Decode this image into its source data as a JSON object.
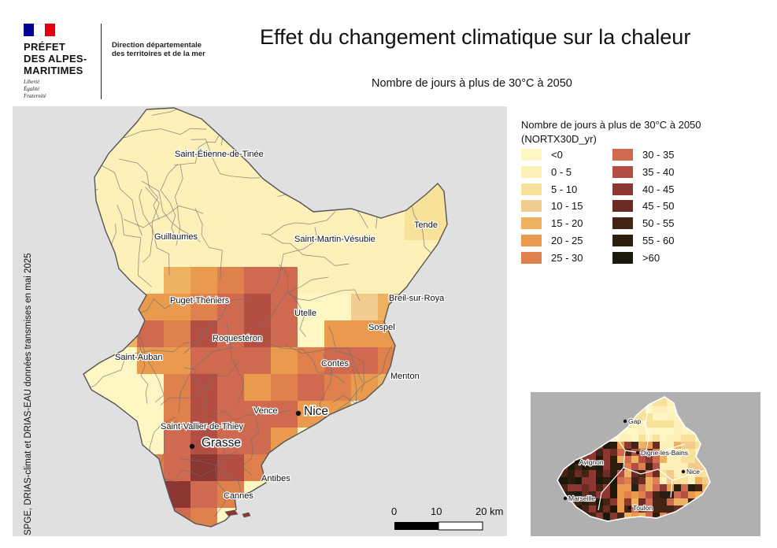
{
  "header": {
    "flag_colors": [
      "#000091",
      "#ffffff",
      "#e1000f"
    ],
    "prefet_lines": [
      "PRÉFET",
      "DES ALPES-",
      "MARITIMES"
    ],
    "devise_lines": [
      "Liberté",
      "Égalité",
      "Fraternité"
    ],
    "ddtm_lines": [
      "Direction départementale",
      "des territoires et de la mer"
    ],
    "title": "Effet du changement climatique sur la chaleur",
    "subtitle": "Nombre de jours à plus de 30°C à 2050"
  },
  "credit": "SPGE, DRIAS-climat et DRIAS-EAU données transmises en mai 2025",
  "legend": {
    "title_lines": [
      "Nombre de jours à plus de 30°C à 2050",
      "(NORTX30D_yr)"
    ],
    "classes": [
      {
        "label": "<0",
        "color": "#fef7c4"
      },
      {
        "label": "0 - 5",
        "color": "#fdf0b8"
      },
      {
        "label": "5 - 10",
        "color": "#f8e29a"
      },
      {
        "label": "10 - 15",
        "color": "#f2cc8f"
      },
      {
        "label": "15 - 20",
        "color": "#eeb15f"
      },
      {
        "label": "20 - 25",
        "color": "#e99a4c"
      },
      {
        "label": "25 - 30",
        "color": "#e0804c"
      },
      {
        "label": "30 - 35",
        "color": "#cf6a50"
      },
      {
        "label": "35 - 40",
        "color": "#b34e42"
      },
      {
        "label": "40 - 45",
        "color": "#8d3733"
      },
      {
        "label": "45 - 50",
        "color": "#6a2c24"
      },
      {
        "label": "50 - 55",
        "color": "#442414"
      },
      {
        "label": "55 - 60",
        "color": "#2b1e0e"
      },
      {
        "label": ">60",
        "color": "#1b1a0a"
      }
    ]
  },
  "map": {
    "places": [
      {
        "name": "Saint-Étienne-de-Tinée",
        "major": false
      },
      {
        "name": "Tende",
        "major": false
      },
      {
        "name": "Guillaumes",
        "major": false
      },
      {
        "name": "Saint-Martin-Vésubie",
        "major": false
      },
      {
        "name": "Puget-Théniers",
        "major": false
      },
      {
        "name": "Breil-sur-Roya",
        "major": false
      },
      {
        "name": "Utelle",
        "major": false
      },
      {
        "name": "Sospel",
        "major": false
      },
      {
        "name": "Roquestéron",
        "major": false
      },
      {
        "name": "Saint-Auban",
        "major": false
      },
      {
        "name": "Contes",
        "major": false
      },
      {
        "name": "Menton",
        "major": false
      },
      {
        "name": "Vence",
        "major": false
      },
      {
        "name": "Nice",
        "major": true
      },
      {
        "name": "Saint-Vallier-de-Thiey",
        "major": false
      },
      {
        "name": "Grasse",
        "major": true
      },
      {
        "name": "Antibes",
        "major": false
      },
      {
        "name": "Cannes",
        "major": false
      }
    ],
    "scalebar": {
      "labels": [
        "0",
        "10",
        "20 km"
      ]
    }
  },
  "inset": {
    "places": [
      "Gap",
      "Digne-les-Bains",
      "Avignon",
      "Nice",
      "Marseille",
      "Toulon"
    ]
  }
}
